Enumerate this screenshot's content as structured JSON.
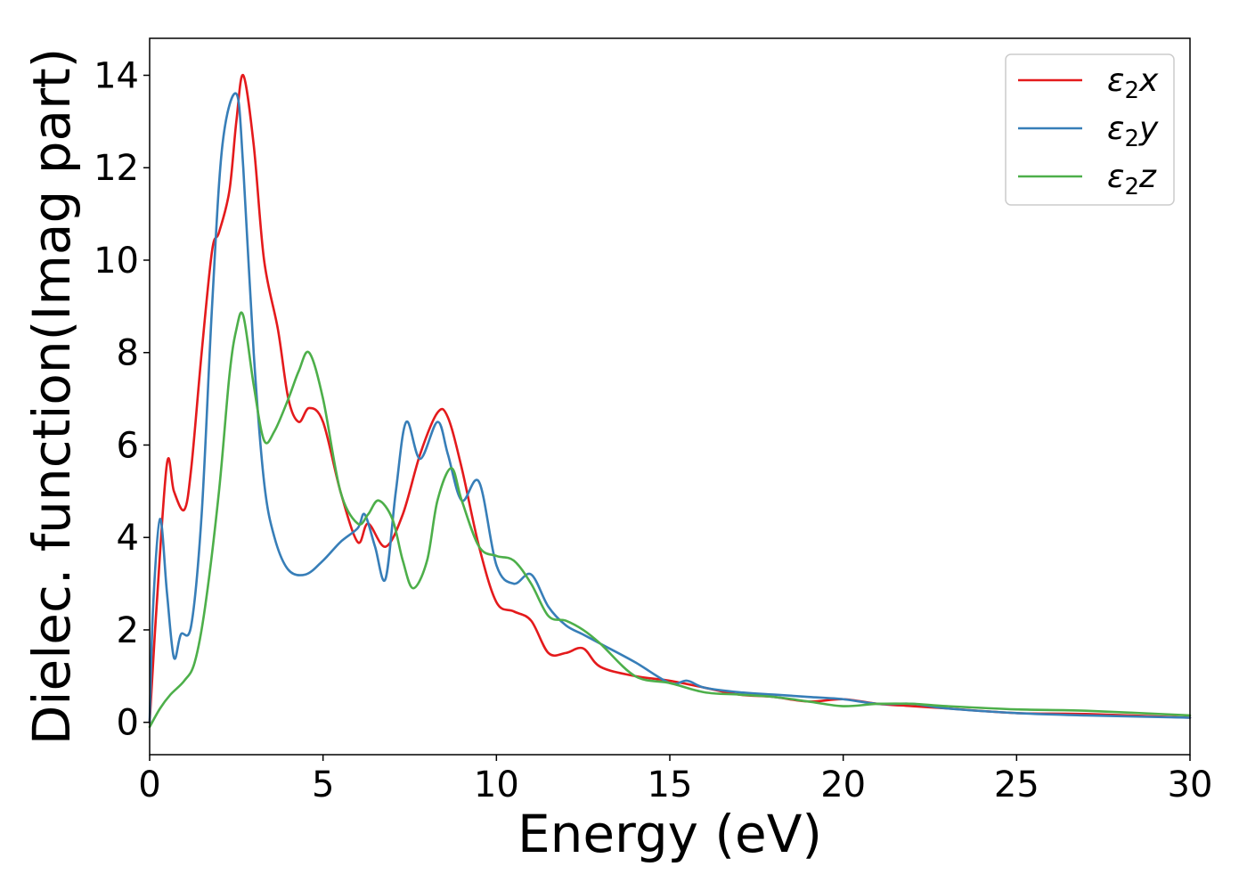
{
  "chart_data": {
    "type": "line",
    "xlabel": "Energy (eV)",
    "ylabel": "Dielec. function(Imag part)",
    "xlim": [
      0,
      30
    ],
    "ylim": [
      -0.7,
      14.8
    ],
    "xticks": [
      0,
      5,
      10,
      15,
      20,
      25,
      30
    ],
    "yticks": [
      0,
      2,
      4,
      6,
      8,
      10,
      12,
      14
    ],
    "grid": false,
    "legend_position": "top-right",
    "series": [
      {
        "name": "ε₂x",
        "legend_base": "ε",
        "legend_sub": "2",
        "legend_suffix": "x",
        "color": "#e41a1c",
        "x": [
          0.0,
          0.2,
          0.5,
          0.7,
          1.0,
          1.2,
          1.5,
          1.8,
          2.0,
          2.3,
          2.5,
          2.7,
          3.0,
          3.3,
          3.7,
          4.0,
          4.3,
          4.6,
          5.0,
          5.5,
          6.0,
          6.3,
          6.8,
          7.3,
          7.8,
          8.3,
          8.6,
          9.0,
          9.5,
          10.0,
          10.5,
          11.0,
          11.5,
          12.0,
          12.5,
          13.0,
          14.0,
          15.0,
          16.0,
          17.0,
          18.0,
          19.0,
          20.0,
          21.0,
          22.0,
          23.0,
          25.0,
          27.0,
          30.0
        ],
        "y": [
          0.0,
          2.5,
          5.6,
          5.0,
          4.6,
          5.5,
          8.0,
          10.2,
          10.6,
          11.5,
          13.0,
          14.0,
          12.5,
          10.0,
          8.5,
          7.0,
          6.5,
          6.8,
          6.5,
          5.0,
          3.9,
          4.3,
          3.8,
          4.5,
          5.8,
          6.7,
          6.6,
          5.5,
          3.8,
          2.6,
          2.4,
          2.2,
          1.5,
          1.5,
          1.6,
          1.2,
          1.0,
          0.9,
          0.75,
          0.6,
          0.55,
          0.45,
          0.5,
          0.4,
          0.35,
          0.3,
          0.2,
          0.18,
          0.1
        ]
      },
      {
        "name": "ε₂y",
        "legend_base": "ε",
        "legend_sub": "2",
        "legend_suffix": "y",
        "color": "#377eb8",
        "x": [
          0.0,
          0.1,
          0.3,
          0.5,
          0.7,
          0.9,
          1.2,
          1.5,
          1.8,
          2.1,
          2.5,
          2.7,
          3.0,
          3.3,
          3.6,
          4.0,
          4.5,
          5.0,
          5.5,
          6.0,
          6.2,
          6.5,
          6.8,
          7.1,
          7.4,
          7.8,
          8.3,
          8.6,
          9.0,
          9.5,
          10.0,
          10.5,
          11.0,
          11.5,
          12.0,
          12.5,
          13.0,
          14.0,
          15.0,
          15.5,
          16.0,
          17.0,
          18.0,
          19.0,
          20.0,
          21.0,
          22.0,
          23.0,
          25.0,
          27.0,
          30.0
        ],
        "y": [
          0.0,
          2.5,
          4.4,
          2.8,
          1.4,
          1.9,
          2.1,
          4.5,
          9.0,
          12.5,
          13.6,
          12.0,
          8.0,
          5.2,
          4.0,
          3.3,
          3.2,
          3.5,
          3.9,
          4.2,
          4.5,
          3.8,
          3.1,
          5.0,
          6.5,
          5.7,
          6.5,
          5.8,
          4.8,
          5.2,
          3.4,
          3.0,
          3.2,
          2.5,
          2.1,
          1.9,
          1.7,
          1.3,
          0.85,
          0.9,
          0.75,
          0.65,
          0.6,
          0.55,
          0.5,
          0.4,
          0.4,
          0.3,
          0.2,
          0.15,
          0.1
        ]
      },
      {
        "name": "ε₂z",
        "legend_base": "ε",
        "legend_sub": "2",
        "legend_suffix": "z",
        "color": "#4daf4a",
        "x": [
          0.0,
          0.3,
          0.6,
          1.0,
          1.3,
          1.6,
          2.0,
          2.3,
          2.5,
          2.7,
          3.0,
          3.3,
          3.6,
          4.0,
          4.3,
          4.6,
          5.0,
          5.5,
          6.0,
          6.3,
          6.6,
          7.0,
          7.3,
          7.6,
          8.0,
          8.3,
          8.7,
          9.0,
          9.5,
          10.0,
          10.5,
          11.0,
          11.5,
          12.0,
          12.5,
          13.0,
          14.0,
          15.0,
          16.0,
          17.0,
          18.0,
          19.0,
          20.0,
          21.0,
          22.0,
          23.0,
          25.0,
          27.0,
          30.0
        ],
        "y": [
          -0.1,
          0.3,
          0.6,
          0.9,
          1.3,
          2.5,
          5.0,
          7.5,
          8.5,
          8.8,
          7.3,
          6.1,
          6.3,
          7.0,
          7.6,
          8.0,
          7.0,
          5.0,
          4.3,
          4.5,
          4.8,
          4.4,
          3.5,
          2.9,
          3.5,
          4.8,
          5.5,
          4.8,
          3.8,
          3.6,
          3.5,
          3.0,
          2.3,
          2.2,
          2.0,
          1.7,
          1.0,
          0.85,
          0.65,
          0.6,
          0.55,
          0.45,
          0.35,
          0.4,
          0.4,
          0.35,
          0.28,
          0.25,
          0.15
        ]
      }
    ]
  }
}
